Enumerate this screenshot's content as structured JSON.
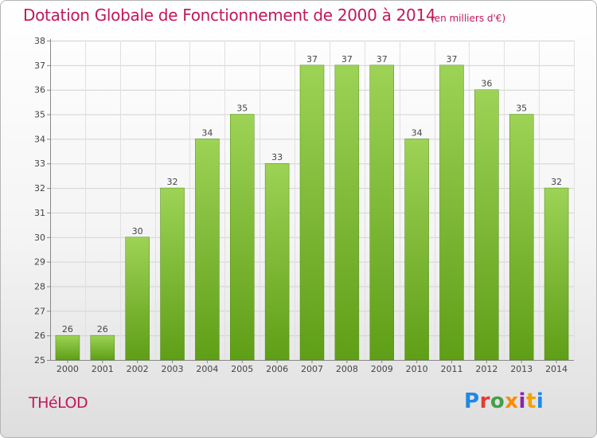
{
  "header": {
    "title": "Dotation Globale de Fonctionnement de 2000 à 2014",
    "subtitle": "(en milliers d'€)"
  },
  "footer": {
    "commune": "THéLOD",
    "logo_text": "Proxiti",
    "logo_colors": [
      "#1e88e5",
      "#e53935",
      "#43a047",
      "#fb8c00",
      "#8e24aa",
      "#f4a100",
      "#1e88e5"
    ]
  },
  "chart_data": {
    "type": "bar",
    "categories": [
      "2000",
      "2001",
      "2002",
      "2003",
      "2004",
      "2005",
      "2006",
      "2007",
      "2008",
      "2009",
      "2010",
      "2011",
      "2012",
      "2013",
      "2014"
    ],
    "values": [
      26,
      26,
      30,
      32,
      34,
      35,
      33,
      37,
      37,
      37,
      34,
      37,
      36,
      35,
      32
    ],
    "ylim": [
      25,
      38
    ],
    "yticks": [
      25,
      26,
      27,
      28,
      29,
      30,
      31,
      32,
      33,
      34,
      35,
      36,
      37,
      38
    ],
    "grid": true,
    "data_labels": true,
    "bar_color": "#7cbf2c"
  }
}
